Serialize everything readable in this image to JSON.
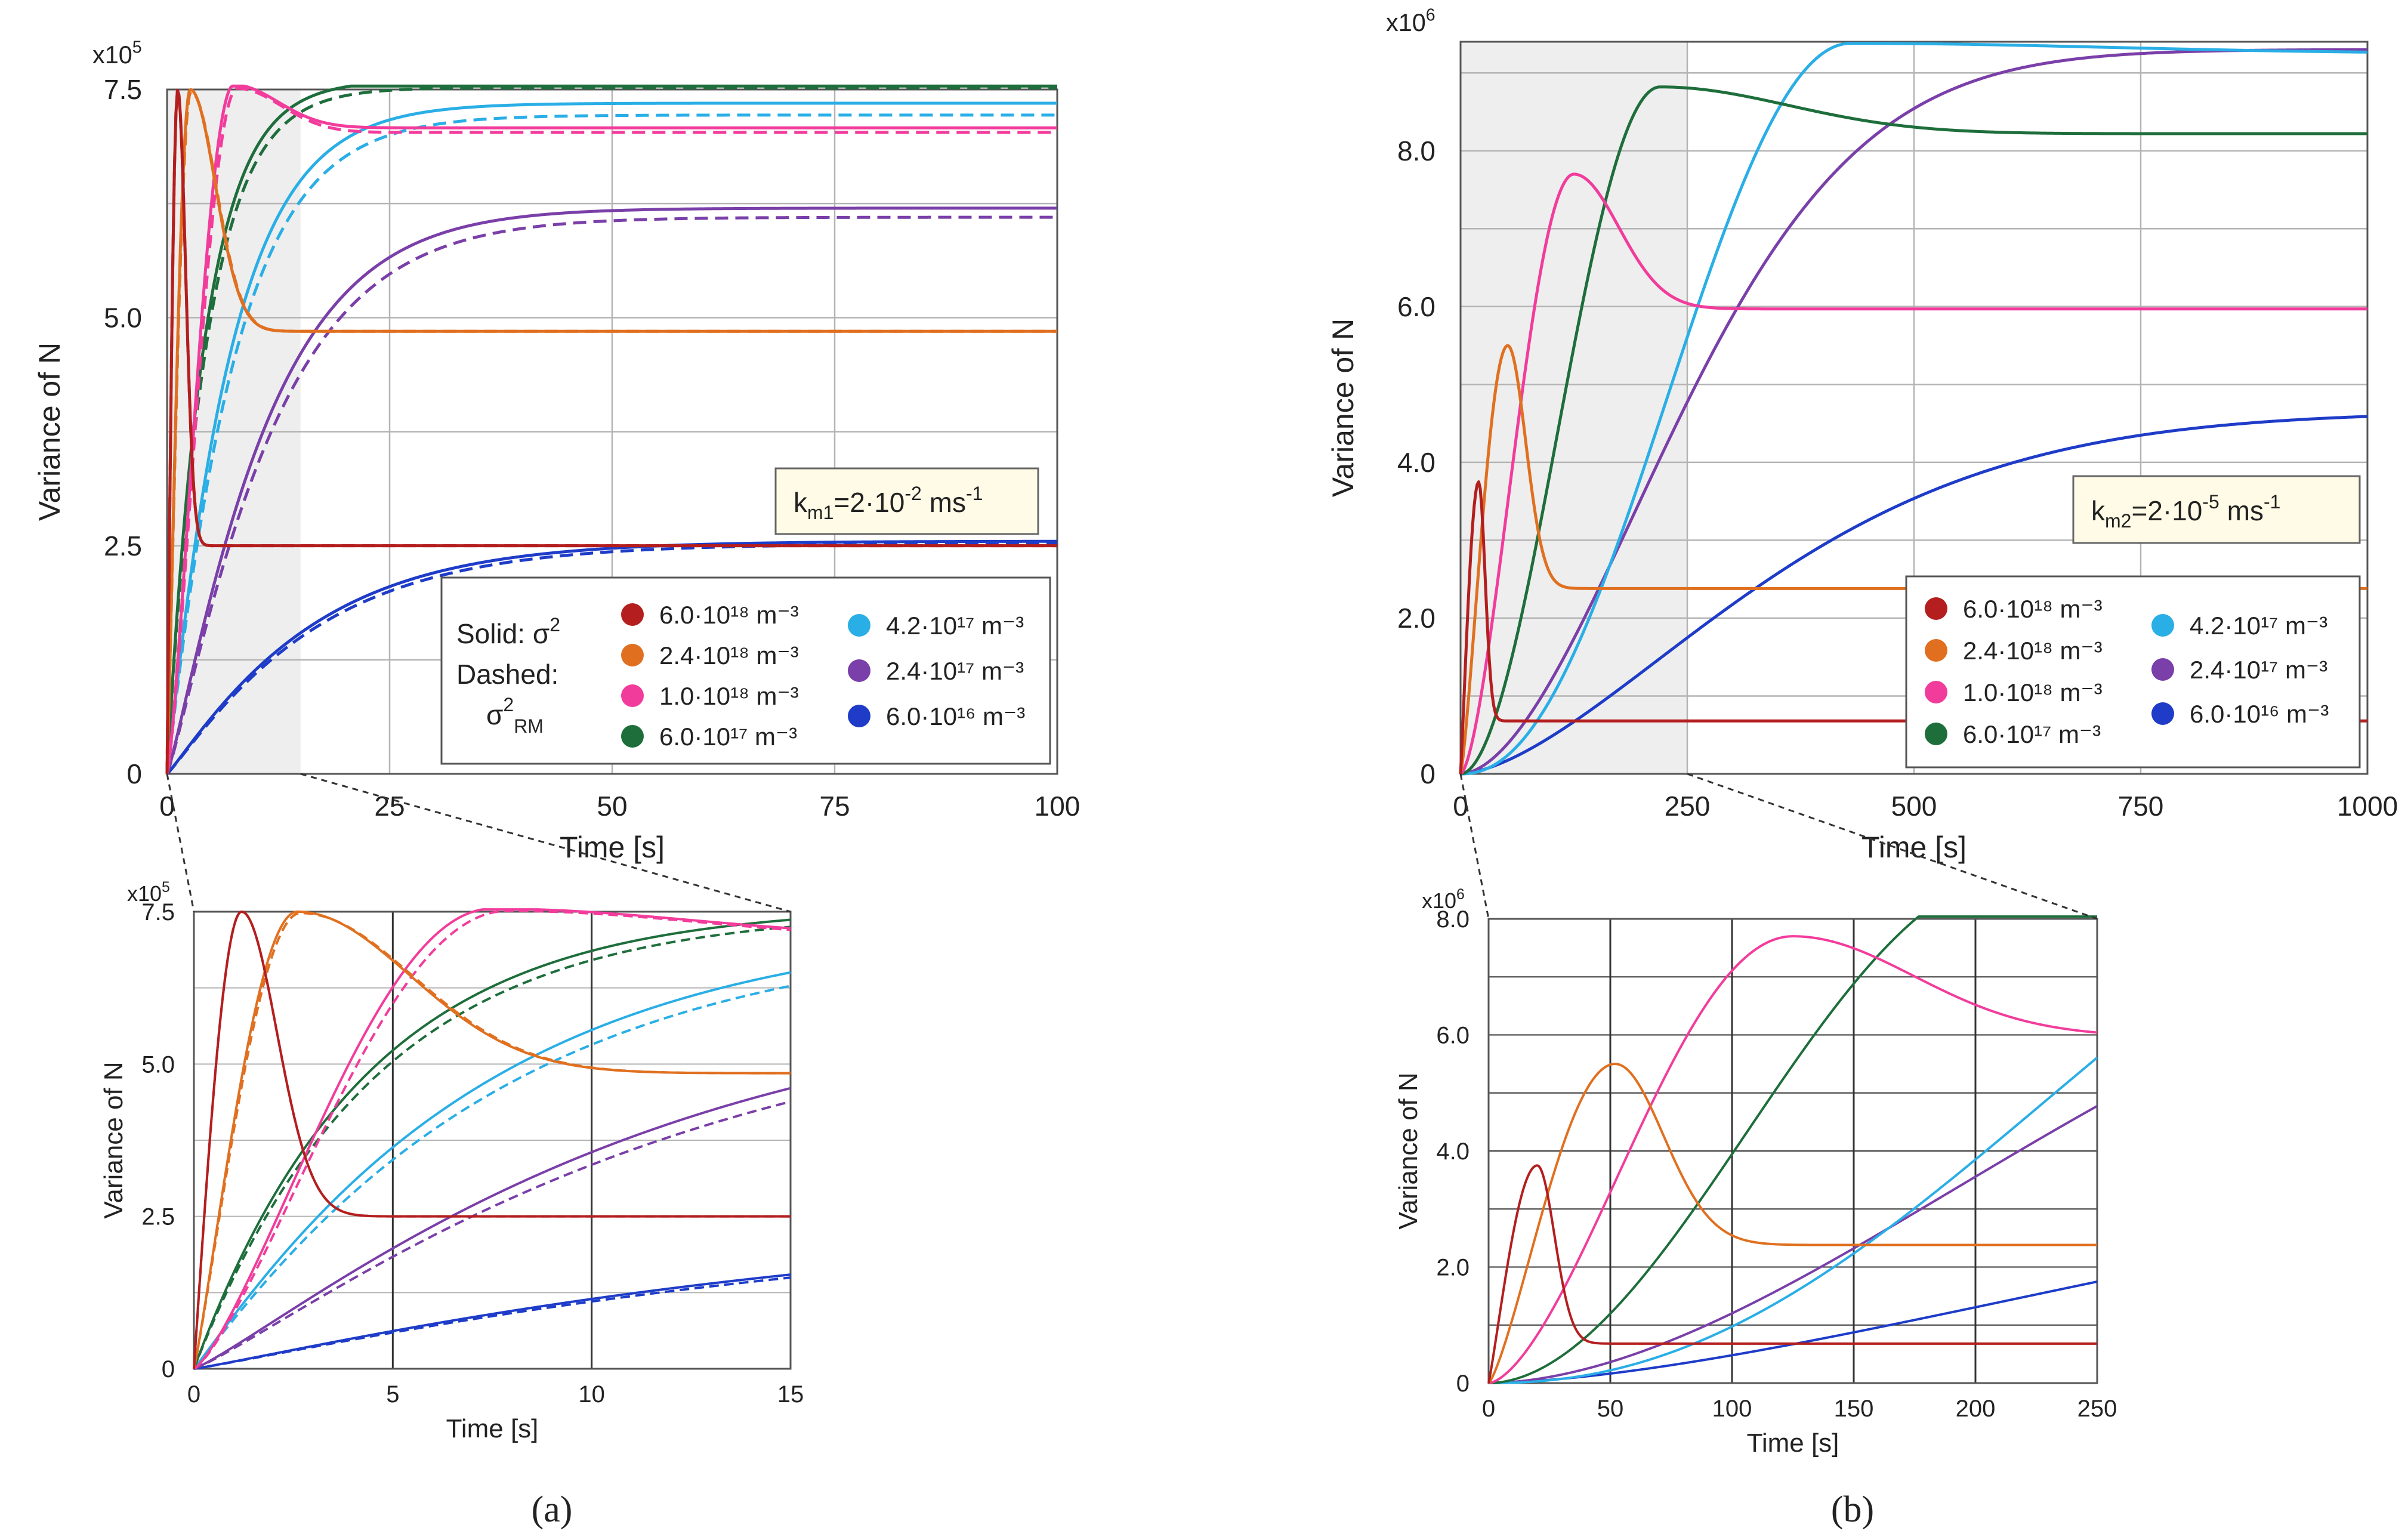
{
  "colors": {
    "red": "#b41e1e",
    "orange": "#e07020",
    "pink": "#f23c9c",
    "green": "#1e6e3c",
    "cyan": "#2aaee6",
    "purple": "#7a3fa8",
    "blue": "#1e3cc8",
    "shade": "#eeeeee",
    "grid": "#b4b4b4",
    "grid_dark": "#333333"
  },
  "panel_labels": {
    "a": "(a)",
    "b": "(b)"
  },
  "chart_data": [
    {
      "id": "a_main",
      "type": "line",
      "xlabel": "Time [s]",
      "ylabel": "Variance of  N",
      "multiplier": "x10",
      "multiplier_exp": "5",
      "xlim": [
        0,
        100
      ],
      "ylim": [
        0,
        7.5
      ],
      "xticks": [
        0,
        25,
        50,
        75,
        100
      ],
      "xtick_labels": [
        "0",
        "25",
        "50",
        "75",
        "100"
      ],
      "yticks": [
        0,
        2.5,
        5.0,
        7.5
      ],
      "ytick_labels": [
        "0",
        "2.5",
        "5.0",
        "7.5"
      ],
      "shaded_region": [
        0,
        15
      ],
      "annotation": {
        "k": "k",
        "sub": "m1",
        "eq": "=2·10",
        "exp": "-2",
        "unit": " ms",
        "unit_exp": "-1"
      },
      "legend": {
        "solid_label": "Solid: σ",
        "solid_exp": "2",
        "dashed_label": "Dashed:",
        "dashed_sym": "σ",
        "dashed_exp": "2",
        "dashed_sub": "RM"
      },
      "series": [
        {
          "name": "6.0·10¹⁸ m⁻³",
          "color_key": "red",
          "steady": 2.5,
          "peak": 7.5,
          "t_peak": 1.2,
          "dashed_steady": 2.5
        },
        {
          "name": "2.4·10¹⁸ m⁻³",
          "color_key": "orange",
          "steady": 4.85,
          "peak": 7.5,
          "t_peak": 2.6,
          "dashed_steady": 4.85
        },
        {
          "name": "1.0·10¹⁸ m⁻³",
          "color_key": "pink",
          "steady": 7.08,
          "peak": 7.55,
          "t_peak": 7.5,
          "dashed_steady": 7.03
        },
        {
          "name": "6.0·10¹⁷ m⁻³",
          "color_key": "green",
          "steady": 7.6,
          "dashed_steady": 7.52
        },
        {
          "name": "4.2·10¹⁷ m⁻³",
          "color_key": "cyan",
          "steady": 7.35,
          "dashed_steady": 7.22
        },
        {
          "name": "2.4·10¹⁷ m⁻³",
          "color_key": "purple",
          "steady": 6.2,
          "dashed_steady": 6.1
        },
        {
          "name": "6.0·10¹⁶ m⁻³",
          "color_key": "blue",
          "steady": 2.55,
          "dashed_steady": 2.52
        }
      ]
    },
    {
      "id": "a_zoom",
      "type": "line",
      "xlabel": "Time [s]",
      "ylabel": "Variance of  N",
      "multiplier": "x10",
      "multiplier_exp": "5",
      "xlim": [
        0,
        15
      ],
      "ylim": [
        0,
        7.5
      ],
      "xticks": [
        0,
        5,
        10,
        15
      ],
      "xtick_labels": [
        "0",
        "5",
        "10",
        "15"
      ],
      "yticks": [
        0,
        2.5,
        5.0,
        7.5
      ],
      "ytick_labels": [
        "0",
        "2.5",
        "5.0",
        "7.5"
      ]
    },
    {
      "id": "b_main",
      "type": "line",
      "xlabel": "Time [s]",
      "ylabel": "Variance of  N",
      "multiplier": "x10",
      "multiplier_exp": "6",
      "xlim": [
        0,
        1000
      ],
      "ylim": [
        0,
        9.4
      ],
      "xticks": [
        0,
        250,
        500,
        750,
        1000
      ],
      "xtick_labels": [
        "0",
        "250",
        "500",
        "750",
        "1000"
      ],
      "yticks": [
        0,
        2.0,
        4.0,
        6.0,
        8.0
      ],
      "ytick_labels": [
        "0",
        "2.0",
        "4.0",
        "6.0",
        "8.0"
      ],
      "shaded_region": [
        0,
        250
      ],
      "annotation": {
        "k": "k",
        "sub": "m2",
        "eq": "=2·10",
        "exp": "-5",
        "unit": " ms",
        "unit_exp": "-1"
      },
      "series": [
        {
          "name": "6.0·10¹⁸ m⁻³",
          "color_key": "red",
          "steady": 0.68,
          "peak": 3.75,
          "t_peak": 20
        },
        {
          "name": "2.4·10¹⁸ m⁻³",
          "color_key": "orange",
          "steady": 2.38,
          "peak": 5.5,
          "t_peak": 52
        },
        {
          "name": "1.0·10¹⁸ m⁻³",
          "color_key": "pink",
          "steady": 5.97,
          "peak": 7.7,
          "t_peak": 125
        },
        {
          "name": "6.0·10¹⁷ m⁻³",
          "color_key": "green",
          "steady": 8.22,
          "peak": 8.82,
          "t_peak": 220
        },
        {
          "name": "4.2·10¹⁷ m⁻³",
          "color_key": "cyan",
          "steady": 9.25,
          "peak": 9.38,
          "t_peak": 430
        },
        {
          "name": "2.4·10¹⁷ m⁻³",
          "color_key": "purple",
          "steady": 9.3
        },
        {
          "name": "6.0·10¹⁶ m⁻³",
          "color_key": "blue",
          "steady": 4.65
        }
      ]
    },
    {
      "id": "b_zoom",
      "type": "line",
      "xlabel": "Time [s]",
      "ylabel": "Variance of  N",
      "multiplier": "x10",
      "multiplier_exp": "6",
      "xlim": [
        0,
        250
      ],
      "ylim": [
        0,
        8.0
      ],
      "xticks": [
        0,
        50,
        100,
        150,
        200,
        250
      ],
      "xtick_labels": [
        "0",
        "50",
        "100",
        "150",
        "200",
        "250"
      ],
      "yticks": [
        0,
        2.0,
        4.0,
        6.0,
        8.0
      ],
      "ytick_labels": [
        "0",
        "2.0",
        "4.0",
        "6.0",
        "8.0"
      ]
    }
  ]
}
